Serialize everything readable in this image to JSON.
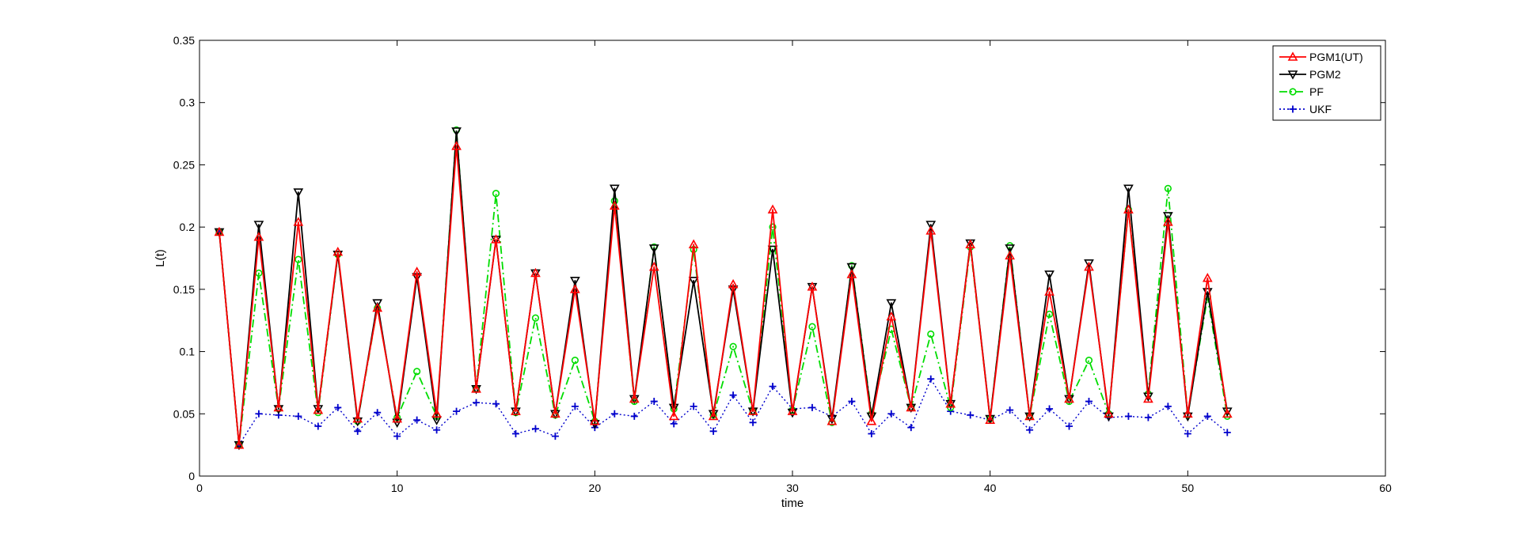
{
  "chart_data": {
    "type": "line",
    "title": "",
    "xlabel": "time",
    "ylabel": "L(t)",
    "xlim": [
      0,
      60
    ],
    "ylim": [
      0,
      0.35
    ],
    "x_ticks": [
      0,
      10,
      20,
      30,
      40,
      50,
      60
    ],
    "y_ticks": [
      0,
      0.05,
      0.1,
      0.15,
      0.2,
      0.25,
      0.3,
      0.35
    ],
    "x_tick_labels": [
      "0",
      "10",
      "20",
      "30",
      "40",
      "50",
      "60"
    ],
    "y_tick_labels": [
      "0",
      "0.05",
      "0.1",
      "0.15",
      "0.2",
      "0.25",
      "0.3",
      "0.35"
    ],
    "grid": false,
    "legend_position": "top-right",
    "x": [
      1,
      2,
      3,
      4,
      5,
      6,
      7,
      8,
      9,
      10,
      11,
      12,
      13,
      14,
      15,
      16,
      17,
      18,
      19,
      20,
      21,
      22,
      23,
      24,
      25,
      26,
      27,
      28,
      29,
      30,
      31,
      32,
      33,
      34,
      35,
      36,
      37,
      38,
      39,
      40,
      41,
      42,
      43,
      44,
      45,
      46,
      47,
      48,
      49,
      50,
      51,
      52
    ],
    "series": [
      {
        "name": "PGM1(UT)",
        "color": "#ff0000",
        "marker": "triangle-up",
        "line_style": "solid",
        "values": [
          0.196,
          0.025,
          0.192,
          0.055,
          0.204,
          0.053,
          0.18,
          0.046,
          0.135,
          0.046,
          0.164,
          0.05,
          0.265,
          0.07,
          0.19,
          0.052,
          0.163,
          0.05,
          0.15,
          0.044,
          0.217,
          0.062,
          0.168,
          0.048,
          0.186,
          0.048,
          0.154,
          0.052,
          0.214,
          0.052,
          0.152,
          0.044,
          0.162,
          0.044,
          0.128,
          0.055,
          0.197,
          0.058,
          0.186,
          0.045,
          0.177,
          0.048,
          0.148,
          0.062,
          0.168,
          0.05,
          0.214,
          0.062,
          0.204,
          0.05,
          0.159,
          0.05
        ]
      },
      {
        "name": "PGM2",
        "color": "#000000",
        "marker": "triangle-down",
        "line_style": "solid",
        "values": [
          0.196,
          0.025,
          0.202,
          0.054,
          0.228,
          0.054,
          0.178,
          0.044,
          0.139,
          0.043,
          0.16,
          0.045,
          0.277,
          0.07,
          0.19,
          0.052,
          0.163,
          0.05,
          0.157,
          0.042,
          0.231,
          0.062,
          0.183,
          0.055,
          0.157,
          0.05,
          0.15,
          0.052,
          0.182,
          0.051,
          0.152,
          0.046,
          0.168,
          0.048,
          0.139,
          0.055,
          0.202,
          0.058,
          0.187,
          0.046,
          0.183,
          0.048,
          0.162,
          0.062,
          0.171,
          0.048,
          0.231,
          0.064,
          0.209,
          0.048,
          0.148,
          0.052
        ]
      },
      {
        "name": "PF",
        "color": "#00dd00",
        "marker": "circle",
        "line_style": "dash-dot",
        "values": [
          0.196,
          0.025,
          0.163,
          0.054,
          0.174,
          0.051,
          0.178,
          0.044,
          0.135,
          0.047,
          0.084,
          0.048,
          0.278,
          0.07,
          0.227,
          0.051,
          0.127,
          0.049,
          0.093,
          0.044,
          0.221,
          0.06,
          0.184,
          0.054,
          0.182,
          0.049,
          0.104,
          0.052,
          0.2,
          0.053,
          0.12,
          0.043,
          0.169,
          0.05,
          0.118,
          0.055,
          0.114,
          0.055,
          0.184,
          0.046,
          0.185,
          0.048,
          0.13,
          0.06,
          0.093,
          0.05,
          0.214,
          0.066,
          0.231,
          0.049,
          0.144,
          0.048
        ]
      },
      {
        "name": "UKF",
        "color": "#0000cc",
        "marker": "plus",
        "line_style": "dotted",
        "values": [
          0.196,
          0.025,
          0.05,
          0.049,
          0.048,
          0.04,
          0.055,
          0.036,
          0.051,
          0.032,
          0.045,
          0.037,
          0.052,
          0.059,
          0.058,
          0.034,
          0.038,
          0.032,
          0.056,
          0.039,
          0.05,
          0.048,
          0.06,
          0.042,
          0.056,
          0.036,
          0.065,
          0.043,
          0.072,
          0.054,
          0.055,
          0.048,
          0.06,
          0.034,
          0.05,
          0.039,
          0.078,
          0.052,
          0.049,
          0.045,
          0.053,
          0.037,
          0.054,
          0.04,
          0.06,
          0.047,
          0.048,
          0.047,
          0.056,
          0.034,
          0.048,
          0.035
        ]
      }
    ]
  }
}
